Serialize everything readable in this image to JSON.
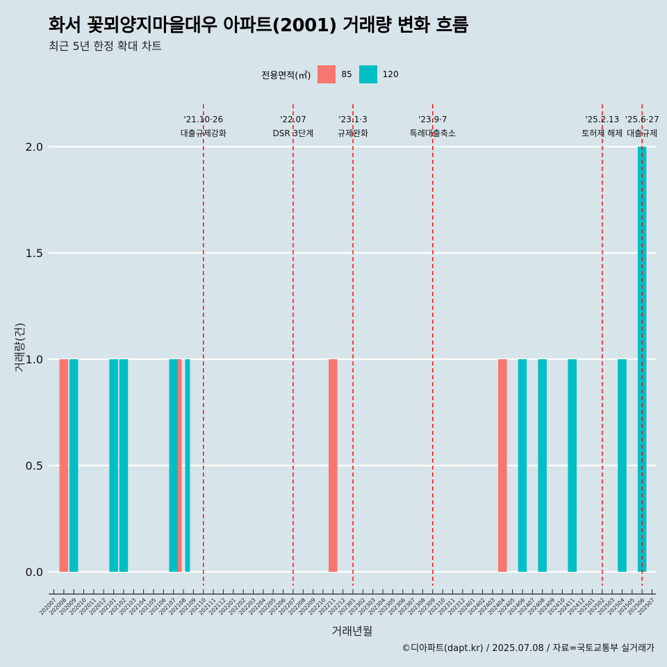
{
  "title": "화서 꽃뫼양지마을대우 아파트(2001) 거래량 변화 흐름",
  "subtitle": "최근 5년 한정 확대 차트",
  "caption": "©디아파트(dapt.kr) / 2025.07.08 / 자료=국토교통부 실거래가",
  "legend": {
    "title": "전용면적(㎡)",
    "items": [
      {
        "label": "85",
        "color": "#f8766d"
      },
      {
        "label": "120",
        "color": "#00bfc4"
      }
    ]
  },
  "chart_data": {
    "type": "bar",
    "xlabel": "거래년월",
    "ylabel": "거래량(건)",
    "ylim": [
      0,
      2
    ],
    "yticks": [
      "0.0",
      "0.5",
      "1.0",
      "1.5",
      "2.0"
    ],
    "grid": true,
    "categories": [
      "202007",
      "202008",
      "202009",
      "202010",
      "202011",
      "202012",
      "202101",
      "202102",
      "202103",
      "202104",
      "202105",
      "202106",
      "202107",
      "202108",
      "202109",
      "202110",
      "202111",
      "202112",
      "202201",
      "202202",
      "202203",
      "202204",
      "202205",
      "202206",
      "202207",
      "202208",
      "202209",
      "202210",
      "202211",
      "202212",
      "202301",
      "202302",
      "202303",
      "202304",
      "202305",
      "202306",
      "202307",
      "202308",
      "202309",
      "202310",
      "202311",
      "202312",
      "202401",
      "202402",
      "202403",
      "202404",
      "202405",
      "202406",
      "202407",
      "202408",
      "202409",
      "202410",
      "202411",
      "202412",
      "202501",
      "202502",
      "202503",
      "202504",
      "202505",
      "202506",
      "202507"
    ],
    "series": [
      {
        "name": "85",
        "color": "#f8766d",
        "points": [
          {
            "x": "202008",
            "y": 1
          },
          {
            "x": "202108",
            "y": 1
          },
          {
            "x": "202211",
            "y": 1
          },
          {
            "x": "202404",
            "y": 1
          }
        ]
      },
      {
        "name": "120",
        "color": "#00bfc4",
        "points": [
          {
            "x": "202009",
            "y": 1
          },
          {
            "x": "202101",
            "y": 1
          },
          {
            "x": "202102",
            "y": 1
          },
          {
            "x": "202107",
            "y": 1
          },
          {
            "x": "202108",
            "y": 1
          },
          {
            "x": "202406",
            "y": 1
          },
          {
            "x": "202408",
            "y": 1
          },
          {
            "x": "202411",
            "y": 1
          },
          {
            "x": "202504",
            "y": 1
          },
          {
            "x": "202506",
            "y": 2
          }
        ]
      }
    ],
    "events": [
      {
        "x": "202110",
        "date": "'21.10·26",
        "label": "대출규제강화"
      },
      {
        "x": "202207",
        "date": "'22.07",
        "label": "DSR 3단계"
      },
      {
        "x": "202301",
        "date": "'23.1·3",
        "label": "규제완화"
      },
      {
        "x": "202309",
        "date": "'23.9·7",
        "label": "특례대출축소"
      },
      {
        "x": "202502",
        "date": "'25.2.13",
        "label": "토허제 해제"
      },
      {
        "x": "202506",
        "date": "'25.6·27",
        "label": "대출규제"
      }
    ]
  }
}
